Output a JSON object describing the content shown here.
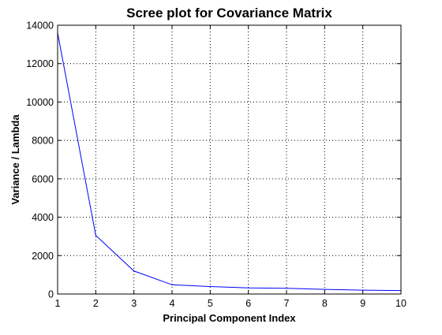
{
  "chart_data": {
    "type": "line",
    "title": "Scree plot for Covariance Matrix",
    "xlabel": "Principal Component Index",
    "ylabel": "Variance / Lambda",
    "xlim": [
      1,
      10
    ],
    "ylim": [
      0,
      14000
    ],
    "xticks": [
      1,
      2,
      3,
      4,
      5,
      6,
      7,
      8,
      9,
      10
    ],
    "yticks": [
      0,
      2000,
      4000,
      6000,
      8000,
      10000,
      12000,
      14000
    ],
    "grid": true,
    "legend": "none",
    "series": [
      {
        "color": "#0000ff",
        "x": [
          1,
          2,
          3,
          4,
          5,
          6,
          7,
          8,
          9,
          10
        ],
        "y": [
          13600,
          3050,
          1200,
          480,
          390,
          320,
          300,
          240,
          200,
          180
        ]
      }
    ]
  }
}
